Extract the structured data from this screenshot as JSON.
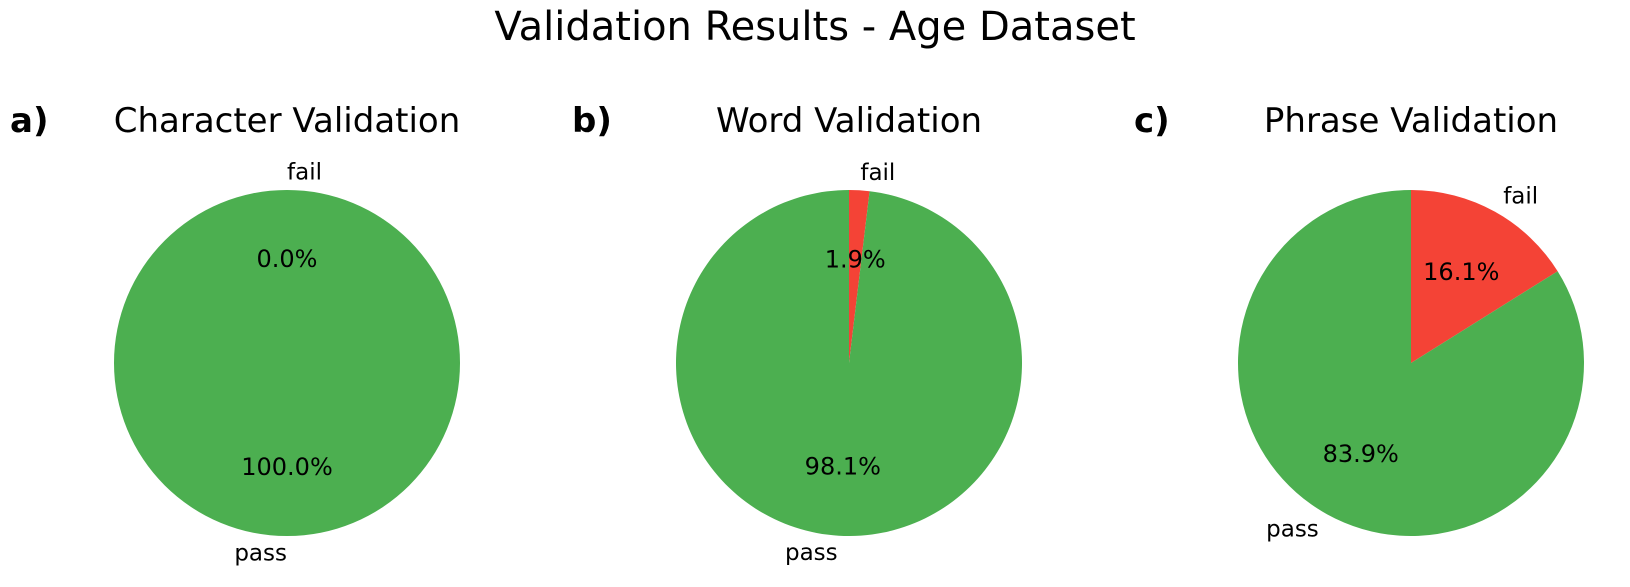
{
  "figure": {
    "title": "Validation Results - Age Dataset"
  },
  "chart_data": [
    {
      "type": "pie",
      "panel_letter": "a)",
      "title": "Character Validation",
      "categories": [
        "fail",
        "pass"
      ],
      "values": [
        0.0,
        100.0
      ],
      "labels": [
        "0.0%",
        "100.0%"
      ],
      "colors": [
        "#f44336",
        "#4caf50"
      ],
      "start_angle_deg": 90,
      "direction": "counterclockwise"
    },
    {
      "type": "pie",
      "panel_letter": "b)",
      "title": "Word Validation",
      "categories": [
        "fail",
        "pass"
      ],
      "values": [
        1.9,
        98.1
      ],
      "labels": [
        "1.9%",
        "98.1%"
      ],
      "colors": [
        "#f44336",
        "#4caf50"
      ],
      "start_angle_deg": 90,
      "direction": "clockwise"
    },
    {
      "type": "pie",
      "panel_letter": "c)",
      "title": "Phrase Validation",
      "categories": [
        "fail",
        "pass"
      ],
      "values": [
        16.1,
        83.9
      ],
      "labels": [
        "16.1%",
        "83.9%"
      ],
      "colors": [
        "#f44336",
        "#4caf50"
      ],
      "start_angle_deg": 90,
      "direction": "clockwise"
    }
  ]
}
